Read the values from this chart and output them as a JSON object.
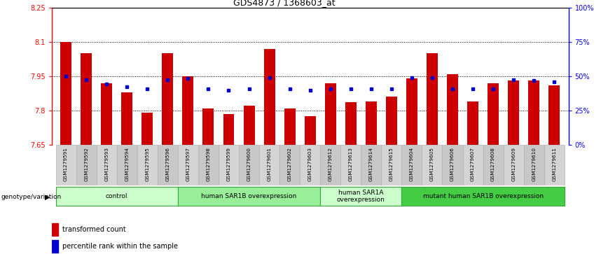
{
  "title": "GDS4873 / 1368603_at",
  "samples": [
    "GSM1279591",
    "GSM1279592",
    "GSM1279593",
    "GSM1279594",
    "GSM1279595",
    "GSM1279596",
    "GSM1279597",
    "GSM1279598",
    "GSM1279599",
    "GSM1279600",
    "GSM1279601",
    "GSM1279602",
    "GSM1279603",
    "GSM1279612",
    "GSM1279613",
    "GSM1279614",
    "GSM1279615",
    "GSM1279604",
    "GSM1279605",
    "GSM1279606",
    "GSM1279607",
    "GSM1279608",
    "GSM1279609",
    "GSM1279610",
    "GSM1279611"
  ],
  "red_values": [
    8.1,
    8.05,
    7.92,
    7.88,
    7.79,
    8.05,
    7.95,
    7.81,
    7.785,
    7.82,
    8.07,
    7.81,
    7.775,
    7.92,
    7.835,
    7.84,
    7.86,
    7.94,
    8.05,
    7.96,
    7.84,
    7.92,
    7.93,
    7.93,
    7.91
  ],
  "blue_values": [
    7.95,
    7.935,
    7.915,
    7.905,
    7.895,
    7.935,
    7.94,
    7.895,
    7.89,
    7.895,
    7.945,
    7.895,
    7.89,
    7.895,
    7.895,
    7.895,
    7.895,
    7.945,
    7.945,
    7.895,
    7.895,
    7.895,
    7.935,
    7.93,
    7.925
  ],
  "ylim_left": [
    7.65,
    8.25
  ],
  "ylim_right": [
    0,
    100
  ],
  "yticks_left": [
    7.65,
    7.8,
    7.95,
    8.1,
    8.25
  ],
  "ytick_labels_left": [
    "7.65",
    "7.8",
    "7.95",
    "8.1",
    "8.25"
  ],
  "yticks_right": [
    0,
    25,
    50,
    75,
    100
  ],
  "ytick_labels_right": [
    "0%",
    "25%",
    "50%",
    "75%",
    "100%"
  ],
  "groups": [
    {
      "label": "control",
      "start": 0,
      "end": 5,
      "color": "#ccffcc"
    },
    {
      "label": "human SAR1B overexpression",
      "start": 6,
      "end": 12,
      "color": "#99ee99"
    },
    {
      "label": "human SAR1A\noverexpression",
      "start": 13,
      "end": 16,
      "color": "#ccffcc"
    },
    {
      "label": "mutant human SAR1B overexpression",
      "start": 17,
      "end": 24,
      "color": "#44cc44"
    }
  ],
  "bar_color": "#cc0000",
  "dot_color": "#0000cc",
  "background_color": "#ffffff",
  "dotted_lines": [
    7.8,
    7.95,
    8.1
  ],
  "baseline": 7.65
}
